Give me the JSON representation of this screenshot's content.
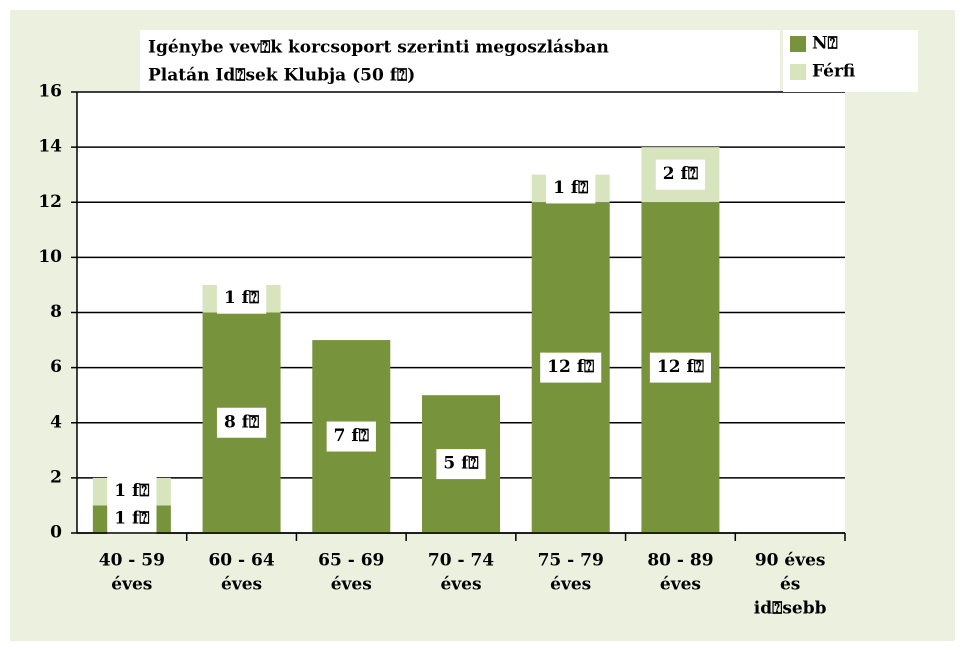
{
  "chart_data": {
    "type": "bar",
    "stacked": true,
    "title": [
      "Igénybe vev⍰k korcsoport szerinti megoszlásban",
      "Platán Id⍰sek Klubja (50 f⍰)"
    ],
    "categories": [
      [
        "40 - 59",
        "éves"
      ],
      [
        "60 - 64",
        "éves"
      ],
      [
        "65 - 69",
        "éves"
      ],
      [
        "70 - 74",
        "éves"
      ],
      [
        "75 - 79",
        "éves"
      ],
      [
        "80 - 89",
        "éves"
      ],
      [
        "90 éves",
        "és",
        "id⍰sebb"
      ]
    ],
    "series": [
      {
        "name": "N⍰",
        "color": "#77933c",
        "values": [
          1,
          8,
          7,
          5,
          12,
          12,
          0
        ],
        "value_labels": [
          "1 f⍰",
          "8 f⍰",
          "7 f⍰",
          "5 f⍰",
          "12 f⍰",
          "12 f⍰",
          null
        ]
      },
      {
        "name": "Férfi",
        "color": "#d7e4bd",
        "values": [
          1,
          1,
          0,
          0,
          1,
          2,
          0
        ],
        "value_labels": [
          "1 f⍰",
          "1 f⍰",
          null,
          null,
          "1 f⍰",
          "2 f⍰",
          null
        ]
      }
    ],
    "ylim": [
      0,
      16
    ],
    "yticks": [
      0,
      2,
      4,
      6,
      8,
      10,
      12,
      14,
      16
    ],
    "grid": true,
    "legend": "top-right"
  }
}
